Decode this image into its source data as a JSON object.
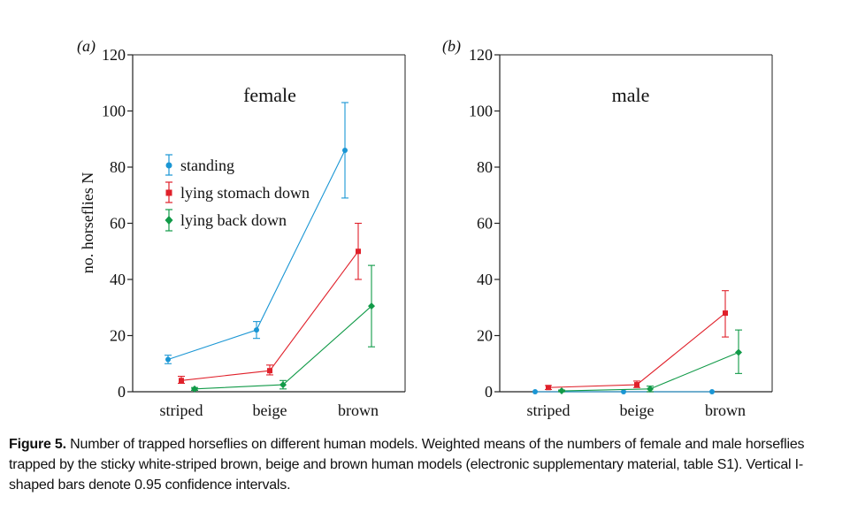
{
  "caption": {
    "label": "Figure 5.",
    "text": "Number of trapped horseflies on different human models. Weighted means of the numbers of female and male horseflies trapped by the sticky white-striped brown, beige and brown human models (electronic supplementary material, table S1). Vertical I-shaped bars denote 0.95 confidence intervals."
  },
  "legend": [
    "standing",
    "lying stomach down",
    "lying back down"
  ],
  "colors": {
    "standing": "#1a96d4",
    "lying stomach down": "#e0202a",
    "lying back down": "#119a48"
  },
  "chart_data": [
    {
      "type": "line",
      "panel": "(a)",
      "title": "female",
      "ylabel": "no. horseflies N",
      "ylim": [
        0,
        120
      ],
      "yticks": [
        0,
        20,
        40,
        60,
        80,
        100,
        120
      ],
      "categories": [
        "striped",
        "beige",
        "brown"
      ],
      "legend_position": "upper-left",
      "series": [
        {
          "name": "standing",
          "values": [
            11.5,
            22,
            86
          ],
          "ci_low": [
            10,
            19,
            69
          ],
          "ci_high": [
            13,
            25,
            103
          ]
        },
        {
          "name": "lying stomach down",
          "values": [
            4,
            7.5,
            50
          ],
          "ci_low": [
            3,
            6,
            40
          ],
          "ci_high": [
            5.5,
            9.5,
            60
          ]
        },
        {
          "name": "lying back down",
          "values": [
            1,
            2.5,
            30.5
          ],
          "ci_low": [
            0.5,
            1,
            16
          ],
          "ci_high": [
            1.5,
            4,
            45
          ]
        }
      ]
    },
    {
      "type": "line",
      "panel": "(b)",
      "title": "male",
      "ylabel": "",
      "ylim": [
        0,
        120
      ],
      "yticks": [
        0,
        20,
        40,
        60,
        80,
        100,
        120
      ],
      "categories": [
        "striped",
        "beige",
        "brown"
      ],
      "series": [
        {
          "name": "standing",
          "values": [
            0,
            0,
            0
          ],
          "ci_low": [
            0,
            0,
            0
          ],
          "ci_high": [
            0,
            0,
            0
          ]
        },
        {
          "name": "lying stomach down",
          "values": [
            1.5,
            2.5,
            28
          ],
          "ci_low": [
            0.8,
            1.5,
            19.5
          ],
          "ci_high": [
            2.2,
            3.8,
            36
          ]
        },
        {
          "name": "lying back down",
          "values": [
            0.3,
            1,
            14
          ],
          "ci_low": [
            0,
            0,
            6.5
          ],
          "ci_high": [
            0.6,
            2,
            22
          ]
        }
      ]
    }
  ]
}
